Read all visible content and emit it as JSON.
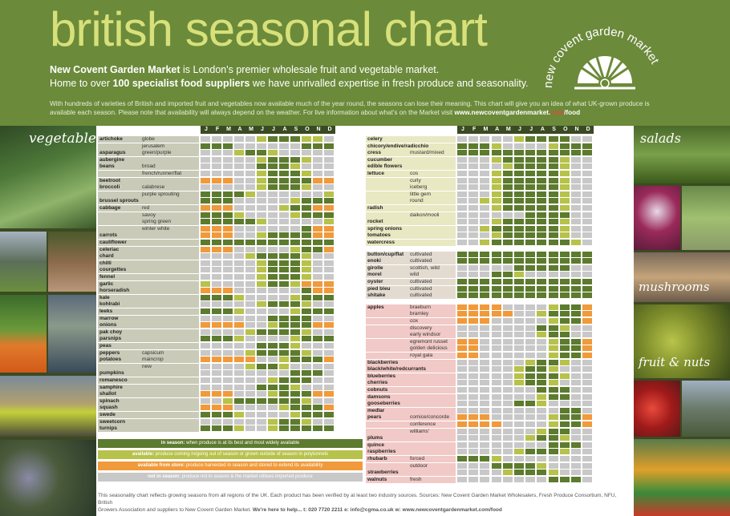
{
  "title": "british seasonal chart",
  "intro": {
    "line1_bold": "New Covent Garden Market",
    "line1_rest": " is London's premier wholesale fruit and vegetable market.",
    "line2_start": "Home to over ",
    "line2_bold1": "100 specialist food suppliers",
    "line2_mid": " we have unrivalled expertise in fresh produce and seasonality."
  },
  "paragraph": {
    "text": "With hundreds of varieties of British and imported fruit and vegetables now available much of the year round, the seasons can lose their meaning. This chart will give you an idea of what UK-grown produce is available each season. Please note that availability will always depend on the weather. For live information about what's on the Market visit ",
    "url_main": "www.newcoventgardenmarket.",
    "url_red": "com",
    "url_end": "/food"
  },
  "logo_text": "new covent garden market",
  "captions": {
    "vegetables": "vegetables",
    "salads": "salads",
    "mushrooms": "mushrooms",
    "fruit": "fruit & nuts"
  },
  "months": [
    "J",
    "F",
    "M",
    "A",
    "M",
    "J",
    "J",
    "A",
    "S",
    "O",
    "N",
    "D"
  ],
  "colors": {
    "in": "#5d7b2e",
    "avail": "#b7c24a",
    "store": "#f09a3b",
    "not": "#c8c8c8",
    "veg_bg": "#c9cbb8",
    "salad_bg": "#e8e8c2",
    "mush_bg": "#e4dbd0",
    "fruit_bg": "#f1c9c6"
  },
  "left_table": [
    {
      "n": "artichoke",
      "v": "globe",
      "c": "NNNNNAIIIAAN"
    },
    {
      "n": "",
      "v": "jerusalem",
      "c": "IIINNNNNNIII"
    },
    {
      "n": "asparagus",
      "v": "green/purple",
      "c": "NNNAIIANNNNN"
    },
    {
      "n": "aubergine",
      "v": "",
      "c": "NNNNNAIIIANN"
    },
    {
      "n": "beans",
      "v": "broad",
      "c": "NNNNNIIIANNN"
    },
    {
      "n": "",
      "v": "french/runner/flat",
      "c": "NNNNNAIIIANN"
    },
    {
      "n": "beetroot",
      "v": "",
      "c": "SSSNNAIIIISS"
    },
    {
      "n": "broccoli",
      "v": "calabrese",
      "c": "NNNNNAIIIANN"
    },
    {
      "n": "",
      "v": "purple sprouting",
      "c": "IIIIANNNNNNA"
    },
    {
      "n": "brussel sprouts",
      "v": "",
      "c": "IIINNNNNAIII"
    },
    {
      "n": "cabbage",
      "v": "red",
      "c": "SSSNNNNAIISS"
    },
    {
      "n": "",
      "v": "savoy",
      "c": "IIIANNNNAIII"
    },
    {
      "n": "",
      "v": "spring green",
      "c": "IIIIIANNNNNA"
    },
    {
      "n": "",
      "v": "winter white",
      "c": "SSSNNNNNNISS"
    },
    {
      "n": "carrots",
      "v": "",
      "c": "SSSNNAIIIISS"
    },
    {
      "n": "cauliflower",
      "v": "",
      "c": "IIIIIIIIIIII"
    },
    {
      "n": "celeriac",
      "v": "",
      "c": "SSSNNNNNAIIS"
    },
    {
      "n": "chard",
      "v": "",
      "c": "NNNNAIIIIANN"
    },
    {
      "n": "chilli",
      "v": "",
      "c": "NNNNNAIIIANN"
    },
    {
      "n": "courgettes",
      "v": "",
      "c": "NNNNNAIIIANN"
    },
    {
      "n": "fennel",
      "v": "",
      "c": "NNNNNAIIIANN"
    },
    {
      "n": "garlic",
      "v": "",
      "c": "ANNNNAIIASSS"
    },
    {
      "n": "horseradish",
      "v": "",
      "c": "SSSNNNNNNISS"
    },
    {
      "n": "kale",
      "v": "",
      "c": "IIIANNNNAIII"
    },
    {
      "n": "kohlrabi",
      "v": "",
      "c": "NNNNNAIIIANN"
    },
    {
      "n": "leeks",
      "v": "",
      "c": "IIIANNNNAIII"
    },
    {
      "n": "marrow",
      "v": "",
      "c": "NNNNNNIIIINN"
    },
    {
      "n": "onions",
      "v": "",
      "c": "SSSSNNAIIISS"
    },
    {
      "n": "pak choy",
      "v": "",
      "c": "NNNNAIIIIANN"
    },
    {
      "n": "parsnips",
      "v": "",
      "c": "IIIANNNNAIII"
    },
    {
      "n": "peas",
      "v": "",
      "c": "NNNNNIIIANNN"
    },
    {
      "n": "peppers",
      "v": "capsicum",
      "c": "NNNNAIIIIANN"
    },
    {
      "n": "potatoes",
      "v": "maincrop",
      "c": "SSSSSNNAIIIS"
    },
    {
      "n": "",
      "v": "new",
      "c": "NNNNAIIANNNN"
    },
    {
      "n": "pumpkins",
      "v": "",
      "c": "NNNNNNNNIIIN"
    },
    {
      "n": "romanesco",
      "v": "",
      "c": "NNNNNNAIIINN"
    },
    {
      "n": "samphire",
      "v": "",
      "c": "NNNNNIIIANNN"
    },
    {
      "n": "shallot",
      "v": "",
      "c": "SSSNNNAIIISS"
    },
    {
      "n": "spinach",
      "v": "",
      "c": "NNAIIIIIIANN"
    },
    {
      "n": "squash",
      "v": "",
      "c": "SSSNNNNAIIIS"
    },
    {
      "n": "swede",
      "v": "",
      "c": "IIIANNNNAIII"
    },
    {
      "n": "sweetcorn",
      "v": "",
      "c": "NNNNNNAIIANN"
    },
    {
      "n": "turnips",
      "v": "",
      "c": "IIIANNAIIIII"
    }
  ],
  "right_table": [
    {
      "n": "celery",
      "v": "",
      "c": "NNNNNAIIIINN",
      "g": "s"
    },
    {
      "n": "chicory/endive/radicchio",
      "v": "",
      "c": "IIIANNNNAIII",
      "g": "s"
    },
    {
      "n": "cress",
      "v": "mustard/mixed",
      "c": "IIIIIIIIIIII",
      "g": "s"
    },
    {
      "n": "cucumber",
      "v": "",
      "c": "NNNAIIIIIANN",
      "g": "s"
    },
    {
      "n": "edible flowers",
      "v": "",
      "c": "NNNNAIIIIANN",
      "g": "s"
    },
    {
      "n": "lettuce",
      "v": "cos",
      "c": "NNNAIIIIIANN",
      "g": "s"
    },
    {
      "n": "",
      "v": "curly",
      "c": "NNNAIIIIIANN",
      "g": "s"
    },
    {
      "n": "",
      "v": "iceberg",
      "c": "NNNAIIIIIANN",
      "g": "s"
    },
    {
      "n": "",
      "v": "little gem",
      "c": "NNNAIIIIIANN",
      "g": "s"
    },
    {
      "n": "",
      "v": "round",
      "c": "NNAAIIIIIANN",
      "g": "s"
    },
    {
      "n": "radish",
      "v": "",
      "c": "NNNAIIIIIANN",
      "g": "s"
    },
    {
      "n": "",
      "v": "daikon/mooli",
      "c": "NNNNNNIIIINN",
      "g": "s"
    },
    {
      "n": "rocket",
      "v": "",
      "c": "NNNAIIIIIANN",
      "g": "s"
    },
    {
      "n": "spring onions",
      "v": "",
      "c": "NNAIIIIIIANN",
      "g": "s"
    },
    {
      "n": "tomatoes",
      "v": "",
      "c": "NNNAIIIIIANN",
      "g": "s"
    },
    {
      "n": "watercress",
      "v": "",
      "c": "NNAIIIIIIIAN",
      "g": "s"
    },
    {
      "n": "",
      "v": "",
      "c": "",
      "g": "gap"
    },
    {
      "n": "button/cup/flat",
      "v": "cultivated",
      "c": "IIIIIIIIIIII",
      "g": "m"
    },
    {
      "n": "enoki",
      "v": "cultivated",
      "c": "IIIIIIIIIIII",
      "g": "m"
    },
    {
      "n": "girolle",
      "v": "scottish, wild",
      "c": "NNNNNIIIIINN",
      "g": "m"
    },
    {
      "n": "morel",
      "v": "wild",
      "c": "NNNIIANNNNNN",
      "g": "m"
    },
    {
      "n": "oyster",
      "v": "cultivated",
      "c": "IIIIIIIIIIII",
      "g": "m"
    },
    {
      "n": "pied bleu",
      "v": "cultivated",
      "c": "IIIIIIIIIIII",
      "g": "m"
    },
    {
      "n": "shitake",
      "v": "cultivated",
      "c": "IIIIIIIIIIII",
      "g": "m"
    },
    {
      "n": "",
      "v": "",
      "c": "",
      "g": "gap"
    },
    {
      "n": "apples",
      "v": "braeburn",
      "c": "SSSSNNNNAIIS",
      "g": "f"
    },
    {
      "n": "",
      "v": "bramley",
      "c": "SSSSSNNAIIIS",
      "g": "f"
    },
    {
      "n": "",
      "v": "cox",
      "c": "SSSNNNNNAIIS",
      "g": "f"
    },
    {
      "n": "",
      "v": "discovery",
      "c": "NNNNNNNIIANN",
      "g": "f"
    },
    {
      "n": "",
      "v": "early windsor",
      "c": "NNNNNNNAIINN",
      "g": "f"
    },
    {
      "n": "",
      "v": "egremont russet",
      "c": "SSNNNNNNAIIS",
      "g": "f"
    },
    {
      "n": "",
      "v": "golden delicious",
      "c": "SSNNNNNNAIIS",
      "g": "f"
    },
    {
      "n": "",
      "v": "royal gala",
      "c": "SSNNNNNNAIIS",
      "g": "f"
    },
    {
      "n": "blackberries",
      "v": "",
      "c": "NNNNNNAIIANN",
      "g": "f"
    },
    {
      "n": "black/white/redcurrants",
      "v": "",
      "c": "NNNNNAIIANNN",
      "g": "f"
    },
    {
      "n": "blueberries",
      "v": "",
      "c": "NNNNNAIIIANN",
      "g": "f"
    },
    {
      "n": "cherries",
      "v": "",
      "c": "NNNNNAIIANNN",
      "g": "f"
    },
    {
      "n": "cobnuts",
      "v": "",
      "c": "NNNNNNNIIINN",
      "g": "f"
    },
    {
      "n": "damsons",
      "v": "",
      "c": "NNNNNNNAIINN",
      "g": "f"
    },
    {
      "n": "gooseberries",
      "v": "",
      "c": "NNNNNIIANNNN",
      "g": "f"
    },
    {
      "n": "medlar",
      "v": "",
      "c": "NNNNNNNNNIIN",
      "g": "f"
    },
    {
      "n": "pears",
      "v": "comice/concorde",
      "c": "SSSNNNNNAIIS",
      "g": "f"
    },
    {
      "n": "",
      "v": "conference",
      "c": "SSSSNNNNAIIS",
      "g": "f"
    },
    {
      "n": "",
      "v": "williams'",
      "c": "NNNNNNNAIINN",
      "g": "f"
    },
    {
      "n": "plums",
      "v": "",
      "c": "NNNNNNAIIANN",
      "g": "f"
    },
    {
      "n": "quince",
      "v": "",
      "c": "NNNNNNNNIIIN",
      "g": "f"
    },
    {
      "n": "raspberries",
      "v": "",
      "c": "NNNNNAIIIANN",
      "g": "f"
    },
    {
      "n": "rhubarb",
      "v": "forced",
      "c": "IIIANNNNNNNN",
      "g": "f"
    },
    {
      "n": "",
      "v": "outdoor",
      "c": "NNNIIIIANNNN",
      "g": "f"
    },
    {
      "n": "strawberries",
      "v": "",
      "c": "NNNNAIIIANNN",
      "g": "f"
    },
    {
      "n": "walnuts",
      "v": "fresh",
      "c": "NNNNNNNNIIIN",
      "g": "f"
    }
  ],
  "legend": [
    {
      "bold": "in season:",
      "rest": " when produce is at its best and most widely available",
      "color": "#5d7b2e"
    },
    {
      "bold": "available:",
      "rest": " produce coming in/going out of season or grown outside of season in polytunnels",
      "color": "#b7c24a"
    },
    {
      "bold": "available from store:",
      "rest": " produce harvested in season and stored to extend its availability",
      "color": "#f09a3b"
    },
    {
      "bold": "not in season:",
      "rest": " produce not in season & the market utilises imported produce",
      "color": "#c8c8c8"
    }
  ],
  "footer": {
    "line1": "This seasonality chart reflects growing seasons from all regions of the UK. Each product has been verified by at least two industry sources. Sources: New Covent Garden Market Wholesalers, Fresh Produce Consortium, NFU, British",
    "line2_start": "Growers Association and suppliers to New Covent Garden Market. ",
    "line2_bold": "We're here to help...",
    "contact": "   t: 020 7720 2211   e: info@cgma.co.uk   w: www.newcoventgardenmarket.com/food"
  }
}
